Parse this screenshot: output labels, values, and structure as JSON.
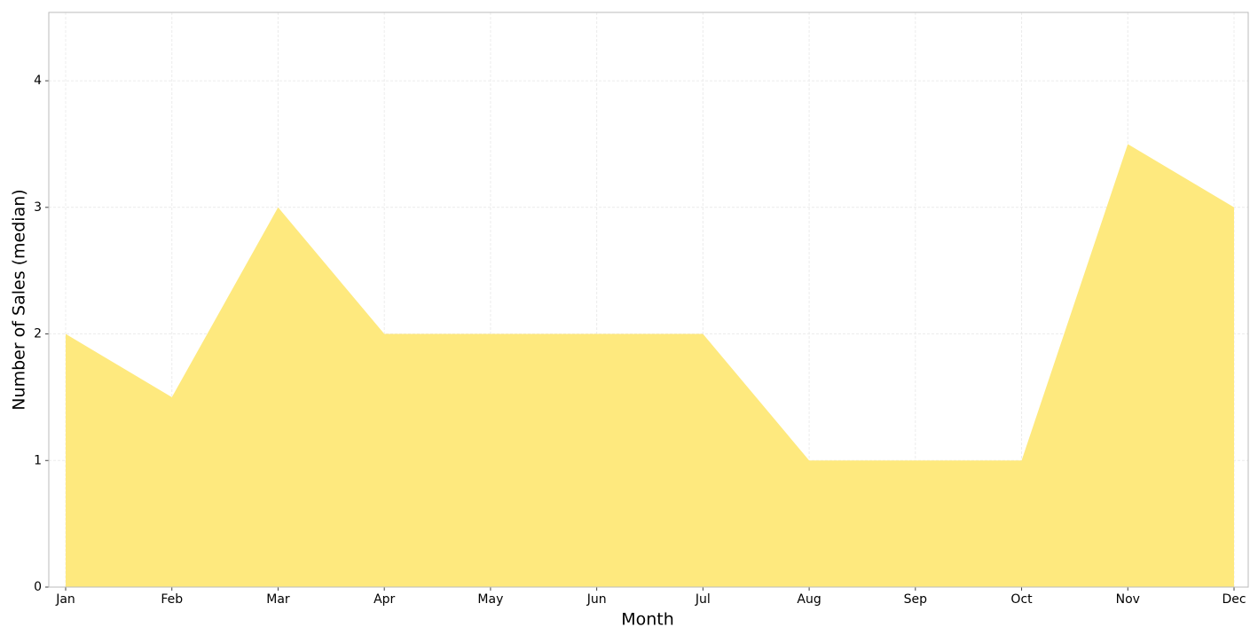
{
  "chart_data": {
    "type": "area",
    "x_label": "Month",
    "y_label": "Number of Sales (median)",
    "categories": [
      "Jan",
      "Feb",
      "Mar",
      "Apr",
      "May",
      "Jun",
      "Jul",
      "Aug",
      "Sep",
      "Oct",
      "Nov",
      "Dec"
    ],
    "series": [
      {
        "color": "#fee97e",
        "values": [
          2,
          1.5,
          3,
          2,
          2,
          2,
          2,
          1,
          1,
          1,
          3.5,
          3
        ]
      }
    ],
    "ylim": [
      0,
      4.54
    ],
    "yticks": [
      0,
      1,
      2,
      3,
      4
    ],
    "grid": true
  }
}
